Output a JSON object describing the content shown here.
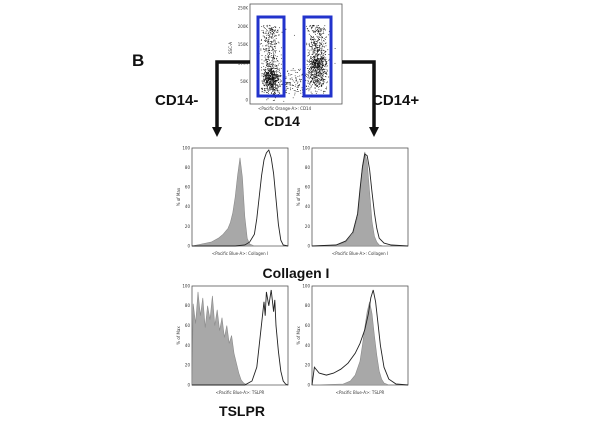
{
  "figure": {
    "panel_letter": "B",
    "left_group": "CD14-",
    "right_group": "CD14+",
    "gate_color": "#2233cc",
    "filled_color": "#a8a8a8"
  },
  "chart_data": [
    {
      "type": "scatter",
      "panel": "gating",
      "title": "",
      "xlabel": "<Pacific Orange-A>: CD14",
      "ylabel": "SSC-A",
      "marker_label": "CD14",
      "yticks": [
        "0",
        "50K",
        "100K",
        "150K",
        "200K",
        "250K"
      ],
      "xticks": [
        "0",
        "10³",
        "10⁴",
        "10⁵"
      ],
      "gates": [
        {
          "name": "CD14-",
          "x_range": [
            0,
            1.2
          ],
          "y_range": [
            5000,
            255000
          ]
        },
        {
          "name": "CD14+",
          "x_range": [
            2.7,
            4.0
          ],
          "y_range": [
            5000,
            255000
          ]
        }
      ]
    },
    {
      "type": "area",
      "panel": "collagen-cd14neg",
      "xlabel": "<Pacific Blue-A>: Collagen I",
      "ylabel": "% of Max",
      "yticks": [
        "0",
        "20",
        "40",
        "60",
        "80",
        "100"
      ],
      "xticks": [
        "0",
        "10³",
        "10⁴",
        "10⁵"
      ],
      "series": [
        {
          "role": "isotype",
          "fill": true,
          "x": [
            0.0,
            0.4,
            0.8,
            1.1,
            1.3,
            1.5,
            1.6,
            1.7,
            1.8,
            1.9,
            2.0,
            2.1,
            2.2,
            2.3,
            2.4,
            2.6,
            3.0,
            4.0
          ],
          "y": [
            0,
            2,
            4,
            8,
            12,
            18,
            24,
            34,
            50,
            72,
            90,
            70,
            30,
            8,
            2,
            0,
            0,
            0
          ]
        },
        {
          "role": "stain",
          "fill": false,
          "x": [
            0.0,
            1.8,
            2.2,
            2.4,
            2.6,
            2.7,
            2.8,
            2.9,
            3.0,
            3.1,
            3.2,
            3.3,
            3.4,
            3.5,
            3.6,
            3.7,
            3.8,
            4.0
          ],
          "y": [
            0,
            0,
            1,
            4,
            12,
            28,
            50,
            72,
            88,
            95,
            98,
            90,
            74,
            48,
            22,
            6,
            1,
            0
          ]
        }
      ]
    },
    {
      "type": "area",
      "panel": "collagen-cd14pos",
      "xlabel": "<Pacific Blue-A>: Collagen I",
      "ylabel": "% of Max",
      "yticks": [
        "0",
        "20",
        "40",
        "60",
        "80",
        "100"
      ],
      "xticks": [
        "0",
        "10³",
        "10⁴",
        "10⁵"
      ],
      "series": [
        {
          "role": "isotype",
          "fill": true,
          "x": [
            0.0,
            1.0,
            1.4,
            1.7,
            1.9,
            2.0,
            2.1,
            2.2,
            2.3,
            2.4,
            2.5,
            2.6,
            2.7,
            2.8,
            3.0,
            4.0
          ],
          "y": [
            0,
            1,
            4,
            12,
            30,
            55,
            82,
            96,
            85,
            55,
            25,
            10,
            4,
            1,
            0,
            0
          ]
        },
        {
          "role": "stain",
          "fill": false,
          "x": [
            0.0,
            1.0,
            1.4,
            1.7,
            1.9,
            2.0,
            2.1,
            2.2,
            2.3,
            2.4,
            2.5,
            2.6,
            2.7,
            2.8,
            3.0,
            3.3,
            4.0
          ],
          "y": [
            0,
            1,
            5,
            14,
            33,
            58,
            80,
            94,
            92,
            78,
            55,
            34,
            18,
            8,
            3,
            1,
            0
          ]
        }
      ]
    },
    {
      "type": "area",
      "panel": "tslpr-cd14neg",
      "xlabel": "<Pacific Blue-A>: TSLPR",
      "ylabel": "% of Max",
      "yticks": [
        "0",
        "20",
        "40",
        "60",
        "80",
        "100"
      ],
      "xticks": [
        "0",
        "10³",
        "10⁴",
        "10⁵"
      ],
      "series": [
        {
          "role": "isotype",
          "fill": true,
          "x": [
            0.0,
            0.05,
            0.15,
            0.25,
            0.35,
            0.45,
            0.55,
            0.65,
            0.75,
            0.85,
            0.95,
            1.05,
            1.15,
            1.25,
            1.35,
            1.45,
            1.55,
            1.65,
            1.75,
            1.85,
            1.95,
            2.05,
            2.15,
            2.3,
            4.0
          ],
          "y": [
            0,
            82,
            62,
            94,
            70,
            88,
            58,
            80,
            66,
            90,
            60,
            76,
            55,
            68,
            48,
            60,
            42,
            50,
            32,
            22,
            12,
            5,
            2,
            0,
            0
          ]
        },
        {
          "role": "stain",
          "fill": false,
          "x": [
            0.0,
            2.2,
            2.5,
            2.7,
            2.8,
            2.9,
            3.0,
            3.05,
            3.1,
            3.2,
            3.3,
            3.4,
            3.45,
            3.5,
            3.6,
            3.7,
            3.8,
            3.9,
            4.0
          ],
          "y": [
            0,
            0,
            4,
            18,
            40,
            62,
            84,
            70,
            94,
            80,
            96,
            74,
            86,
            60,
            34,
            14,
            4,
            1,
            0
          ]
        }
      ]
    },
    {
      "type": "area",
      "panel": "tslpr-cd14pos",
      "xlabel": "<Pacific Blue-A>: TSLPR",
      "ylabel": "% of Max",
      "yticks": [
        "0",
        "20",
        "40",
        "60",
        "80",
        "100"
      ],
      "xticks": [
        "0",
        "10³",
        "10⁴",
        "10⁵"
      ],
      "series": [
        {
          "role": "isotype",
          "fill": true,
          "x": [
            0.0,
            1.3,
            1.6,
            1.8,
            2.0,
            2.1,
            2.2,
            2.3,
            2.4,
            2.5,
            2.6,
            2.7,
            2.8,
            2.9,
            3.0,
            3.2,
            4.0
          ],
          "y": [
            0,
            1,
            4,
            10,
            24,
            40,
            58,
            74,
            84,
            72,
            50,
            30,
            14,
            6,
            2,
            0,
            0
          ]
        },
        {
          "role": "stain",
          "fill": false,
          "x": [
            0.0,
            0.1,
            0.3,
            0.6,
            0.9,
            1.2,
            1.5,
            1.8,
            2.0,
            2.2,
            2.35,
            2.45,
            2.55,
            2.65,
            2.75,
            2.85,
            3.0,
            3.2,
            3.5,
            4.0
          ],
          "y": [
            0,
            18,
            12,
            10,
            12,
            16,
            22,
            32,
            42,
            56,
            72,
            88,
            96,
            84,
            62,
            40,
            18,
            6,
            1,
            0
          ]
        }
      ]
    },
    {
      "type": "area",
      "panel": "labels",
      "marker_labels": [
        "Collagen I",
        "TSLPR"
      ]
    }
  ]
}
